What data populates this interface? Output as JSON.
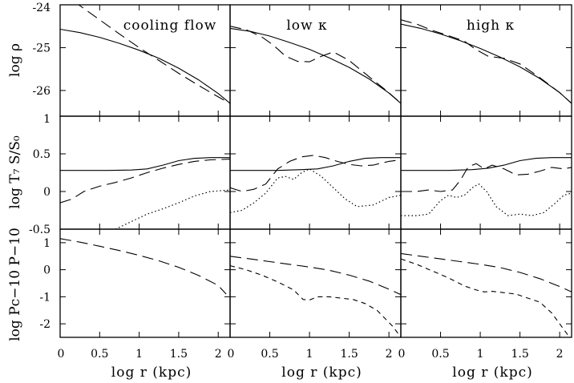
{
  "chart_data": {
    "type": "line",
    "columns": [
      {
        "title": "cooling flow"
      },
      {
        "title": "low κ"
      },
      {
        "title": "high κ"
      }
    ],
    "xlabel": "log r (kpc)",
    "xlim": [
      0,
      2.15
    ],
    "x_ticks": [
      "0",
      "0.5",
      "1",
      "1.5",
      "2"
    ],
    "rows": [
      {
        "ylabel": "log ρ",
        "ylim": [
          -26.6,
          -24
        ],
        "y_ticks": [
          "-24",
          "-25",
          "-26"
        ],
        "panels": [
          {
            "series": [
              {
                "style": "solid",
                "x": [
                  0,
                  0.25,
                  0.5,
                  0.75,
                  1.0,
                  1.25,
                  1.5,
                  1.75,
                  2.0,
                  2.15
                ],
                "y": [
                  -24.57,
                  -24.65,
                  -24.76,
                  -24.9,
                  -25.06,
                  -25.25,
                  -25.48,
                  -25.75,
                  -26.07,
                  -26.3
                ]
              },
              {
                "style": "long-dash",
                "x": [
                  0,
                  0.25,
                  0.5,
                  0.75,
                  1.0,
                  1.25,
                  1.5,
                  1.75,
                  2.0,
                  2.15
                ],
                "y": [
                  -23.7,
                  -24.02,
                  -24.35,
                  -24.68,
                  -25.0,
                  -25.3,
                  -25.6,
                  -25.88,
                  -26.15,
                  -26.3
                ]
              }
            ]
          },
          {
            "series": [
              {
                "style": "solid",
                "x": [
                  0,
                  0.25,
                  0.5,
                  0.75,
                  1.0,
                  1.25,
                  1.5,
                  1.75,
                  2.0,
                  2.15
                ],
                "y": [
                  -24.55,
                  -24.62,
                  -24.73,
                  -24.88,
                  -25.04,
                  -25.24,
                  -25.46,
                  -25.73,
                  -26.06,
                  -26.3
                ]
              },
              {
                "style": "long-dash",
                "x": [
                  0,
                  0.2,
                  0.4,
                  0.55,
                  0.7,
                  0.85,
                  1.0,
                  1.15,
                  1.3,
                  1.5,
                  1.75,
                  2.0,
                  2.15
                ],
                "y": [
                  -24.5,
                  -24.58,
                  -24.75,
                  -24.95,
                  -25.2,
                  -25.32,
                  -25.33,
                  -25.2,
                  -25.1,
                  -25.3,
                  -25.68,
                  -26.05,
                  -26.3
                ]
              }
            ]
          },
          {
            "series": [
              {
                "style": "solid",
                "x": [
                  0,
                  0.25,
                  0.5,
                  0.75,
                  1.0,
                  1.25,
                  1.5,
                  1.75,
                  2.0,
                  2.15
                ],
                "y": [
                  -24.45,
                  -24.55,
                  -24.68,
                  -24.84,
                  -25.02,
                  -25.22,
                  -25.45,
                  -25.72,
                  -26.05,
                  -26.3
                ]
              },
              {
                "style": "long-dash",
                "x": [
                  0,
                  0.2,
                  0.4,
                  0.6,
                  0.8,
                  0.95,
                  1.1,
                  1.3,
                  1.5,
                  1.75,
                  2.0,
                  2.15
                ],
                "y": [
                  -24.35,
                  -24.45,
                  -24.6,
                  -24.72,
                  -24.85,
                  -25.05,
                  -25.2,
                  -25.25,
                  -25.38,
                  -25.7,
                  -26.05,
                  -26.3
                ]
              }
            ]
          }
        ]
      },
      {
        "ylabel": "log T₇ S/S₀",
        "ylim": [
          -0.5,
          1
        ],
        "y_ticks": [
          "1",
          "0.5",
          "0",
          "-0.5"
        ],
        "panels": [
          {
            "series": [
              {
                "style": "solid",
                "x": [
                  0,
                  0.3,
                  0.6,
                  0.9,
                  1.1,
                  1.3,
                  1.5,
                  1.7,
                  1.9,
                  2.15
                ],
                "y": [
                  0.28,
                  0.28,
                  0.28,
                  0.285,
                  0.3,
                  0.35,
                  0.41,
                  0.44,
                  0.45,
                  0.45
                ]
              },
              {
                "style": "long-dash",
                "x": [
                  0,
                  0.15,
                  0.3,
                  0.5,
                  0.7,
                  0.9,
                  1.1,
                  1.3,
                  1.5,
                  1.7,
                  1.9,
                  2.15
                ],
                "y": [
                  -0.15,
                  -0.1,
                  0.0,
                  0.07,
                  0.12,
                  0.18,
                  0.25,
                  0.31,
                  0.36,
                  0.4,
                  0.42,
                  0.43
                ]
              },
              {
                "style": "dotted",
                "x": [
                  0.7,
                  0.9,
                  1.1,
                  1.3,
                  1.5,
                  1.7,
                  1.9,
                  2.15
                ],
                "y": [
                  -0.5,
                  -0.4,
                  -0.3,
                  -0.23,
                  -0.15,
                  -0.06,
                  0.0,
                  0.02
                ]
              }
            ]
          },
          {
            "series": [
              {
                "style": "solid",
                "x": [
                  0,
                  0.3,
                  0.6,
                  0.9,
                  1.1,
                  1.3,
                  1.5,
                  1.7,
                  1.9,
                  2.15
                ],
                "y": [
                  0.28,
                  0.28,
                  0.28,
                  0.29,
                  0.3,
                  0.34,
                  0.4,
                  0.44,
                  0.45,
                  0.45
                ]
              },
              {
                "style": "long-dash",
                "x": [
                  0,
                  0.15,
                  0.3,
                  0.45,
                  0.6,
                  0.75,
                  0.9,
                  1.05,
                  1.2,
                  1.35,
                  1.5,
                  1.65,
                  1.8,
                  2.0,
                  2.15
                ],
                "y": [
                  0.05,
                  0.0,
                  0.03,
                  0.1,
                  0.3,
                  0.4,
                  0.46,
                  0.48,
                  0.45,
                  0.4,
                  0.36,
                  0.34,
                  0.35,
                  0.4,
                  0.42
                ]
              },
              {
                "style": "dotted",
                "x": [
                  0,
                  0.15,
                  0.3,
                  0.45,
                  0.6,
                  0.7,
                  0.8,
                  0.9,
                  1.0,
                  1.15,
                  1.3,
                  1.45,
                  1.6,
                  1.8,
                  2.0,
                  2.15
                ],
                "y": [
                  -0.28,
                  -0.25,
                  -0.15,
                  -0.02,
                  0.18,
                  0.2,
                  0.16,
                  0.25,
                  0.3,
                  0.2,
                  0.05,
                  -0.1,
                  -0.2,
                  -0.18,
                  -0.08,
                  -0.05
                ]
              }
            ]
          },
          {
            "series": [
              {
                "style": "solid",
                "x": [
                  0,
                  0.3,
                  0.6,
                  0.9,
                  1.1,
                  1.3,
                  1.5,
                  1.7,
                  1.9,
                  2.15
                ],
                "y": [
                  0.28,
                  0.28,
                  0.28,
                  0.29,
                  0.31,
                  0.35,
                  0.41,
                  0.44,
                  0.45,
                  0.45
                ]
              },
              {
                "style": "long-dash",
                "x": [
                  0,
                  0.2,
                  0.35,
                  0.5,
                  0.65,
                  0.75,
                  0.85,
                  0.95,
                  1.05,
                  1.15,
                  1.3,
                  1.45,
                  1.6,
                  1.75,
                  1.9,
                  2.05,
                  2.15
                ],
                "y": [
                  0.0,
                  0.0,
                  0.02,
                  0.0,
                  0.02,
                  0.15,
                  0.33,
                  0.37,
                  0.3,
                  0.35,
                  0.3,
                  0.22,
                  0.23,
                  0.27,
                  0.32,
                  0.3,
                  0.32
                ]
              },
              {
                "style": "dotted",
                "x": [
                  0,
                  0.2,
                  0.35,
                  0.5,
                  0.6,
                  0.7,
                  0.8,
                  0.9,
                  0.98,
                  1.08,
                  1.2,
                  1.35,
                  1.5,
                  1.65,
                  1.8,
                  1.95,
                  2.05,
                  2.15
                ],
                "y": [
                  -0.32,
                  -0.32,
                  -0.3,
                  -0.12,
                  -0.05,
                  -0.08,
                  -0.05,
                  0.05,
                  0.1,
                  0.0,
                  -0.2,
                  -0.32,
                  -0.3,
                  -0.32,
                  -0.28,
                  -0.15,
                  -0.05,
                  -0.02
                ]
              }
            ]
          }
        ]
      },
      {
        "ylabel": "log Pc−10 P−10",
        "ylim": [
          -2.5,
          1.5
        ],
        "y_ticks": [
          "1",
          "0",
          "-1",
          "-2"
        ],
        "panels": [
          {
            "series": [
              {
                "style": "long-dash",
                "x": [
                  0,
                  0.25,
                  0.5,
                  0.75,
                  1.0,
                  1.25,
                  1.5,
                  1.75,
                  2.0,
                  2.1
                ],
                "y": [
                  1.15,
                  1.02,
                  0.87,
                  0.71,
                  0.53,
                  0.33,
                  0.09,
                  -0.21,
                  -0.58,
                  -0.9
                ]
              }
            ]
          },
          {
            "series": [
              {
                "style": "long-dash",
                "x": [
                  0,
                  0.25,
                  0.5,
                  0.75,
                  1.0,
                  1.25,
                  1.5,
                  1.75,
                  2.0,
                  2.15
                ],
                "y": [
                  0.5,
                  0.4,
                  0.3,
                  0.2,
                  0.1,
                  -0.02,
                  -0.2,
                  -0.42,
                  -0.72,
                  -0.92
                ]
              },
              {
                "style": "short-dash",
                "x": [
                  0,
                  0.2,
                  0.4,
                  0.6,
                  0.8,
                  0.92,
                  1.0,
                  1.1,
                  1.25,
                  1.4,
                  1.55,
                  1.7,
                  1.85,
                  1.95,
                  2.05,
                  2.15
                ],
                "y": [
                  0.15,
                  0.0,
                  -0.2,
                  -0.45,
                  -0.75,
                  -1.1,
                  -1.12,
                  -1.0,
                  -1.0,
                  -1.05,
                  -1.1,
                  -1.25,
                  -1.5,
                  -1.8,
                  -2.1,
                  -2.5
                ]
              }
            ]
          },
          {
            "series": [
              {
                "style": "long-dash",
                "x": [
                  0,
                  0.25,
                  0.5,
                  0.75,
                  1.0,
                  1.25,
                  1.5,
                  1.75,
                  2.0,
                  2.15
                ],
                "y": [
                  0.6,
                  0.5,
                  0.4,
                  0.3,
                  0.2,
                  0.08,
                  -0.1,
                  -0.33,
                  -0.62,
                  -0.82
                ]
              },
              {
                "style": "short-dash",
                "x": [
                  0,
                  0.2,
                  0.4,
                  0.6,
                  0.8,
                  0.95,
                  1.05,
                  1.15,
                  1.3,
                  1.45,
                  1.6,
                  1.75,
                  1.9,
                  2.0,
                  2.1,
                  2.15
                ],
                "y": [
                  0.4,
                  0.2,
                  -0.05,
                  -0.3,
                  -0.6,
                  -0.75,
                  -0.82,
                  -0.8,
                  -0.85,
                  -0.9,
                  -1.05,
                  -1.2,
                  -1.6,
                  -2.0,
                  -2.4,
                  -2.6
                ]
              }
            ]
          }
        ]
      }
    ]
  }
}
